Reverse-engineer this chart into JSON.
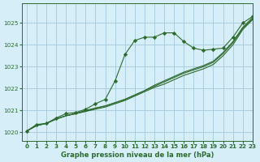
{
  "title": "Graphe pression niveau de la mer (hPa)",
  "bg_color": "#d6eef8",
  "grid_color": "#aaccdd",
  "line_color": "#2d6a2d",
  "marker_color": "#2d6a2d",
  "xlim": [
    -0.5,
    23
  ],
  "ylim": [
    1019.6,
    1025.9
  ],
  "yticks": [
    1020,
    1021,
    1022,
    1023,
    1024,
    1025
  ],
  "xticks": [
    0,
    1,
    2,
    3,
    4,
    5,
    6,
    7,
    8,
    9,
    10,
    11,
    12,
    13,
    14,
    15,
    16,
    17,
    18,
    19,
    20,
    21,
    22,
    23
  ],
  "series1_x": [
    0,
    1,
    2,
    3,
    4,
    5,
    6,
    7,
    8,
    9,
    10,
    11,
    12,
    13,
    14,
    15,
    16,
    17,
    18,
    19,
    20,
    21,
    22,
    23
  ],
  "series1_y": [
    1020.05,
    1020.3,
    1020.4,
    1020.6,
    1020.75,
    1020.85,
    1020.95,
    1021.05,
    1021.15,
    1021.3,
    1021.45,
    1021.65,
    1021.85,
    1022.05,
    1022.2,
    1022.4,
    1022.6,
    1022.75,
    1022.9,
    1023.1,
    1023.5,
    1024.0,
    1024.7,
    1025.15
  ],
  "series2_x": [
    0,
    1,
    2,
    3,
    4,
    5,
    6,
    7,
    8,
    9,
    10,
    11,
    12,
    13,
    14,
    15,
    16,
    17,
    18,
    19,
    20,
    21,
    22,
    23
  ],
  "series2_y": [
    1020.05,
    1020.3,
    1020.4,
    1020.6,
    1020.75,
    1020.85,
    1020.95,
    1021.1,
    1021.2,
    1021.35,
    1021.5,
    1021.7,
    1021.9,
    1022.1,
    1022.3,
    1022.5,
    1022.7,
    1022.85,
    1023.0,
    1023.2,
    1023.6,
    1024.1,
    1024.75,
    1025.2
  ],
  "series3_x": [
    0,
    1,
    2,
    3,
    4,
    5,
    6,
    7,
    8,
    9,
    10,
    11,
    12,
    13,
    14,
    15,
    16,
    17,
    18,
    19,
    20,
    21,
    22,
    23
  ],
  "series3_y": [
    1020.05,
    1020.3,
    1020.4,
    1020.6,
    1020.75,
    1020.85,
    1021.0,
    1021.1,
    1021.2,
    1021.35,
    1021.5,
    1021.7,
    1021.9,
    1022.15,
    1022.35,
    1022.55,
    1022.75,
    1022.9,
    1023.05,
    1023.25,
    1023.65,
    1024.15,
    1024.8,
    1025.25
  ],
  "series4_x": [
    0,
    1,
    2,
    3,
    4,
    5,
    6,
    7,
    8,
    9,
    10,
    11,
    12,
    13,
    14,
    15,
    16,
    17,
    18,
    19,
    20,
    21,
    22,
    23
  ],
  "series4_y": [
    1020.05,
    1020.35,
    1020.4,
    1020.65,
    1020.85,
    1020.9,
    1021.05,
    1021.3,
    1021.5,
    1022.35,
    1023.55,
    1024.2,
    1024.35,
    1024.35,
    1024.55,
    1024.55,
    1024.15,
    1023.85,
    1023.75,
    1023.8,
    1023.85,
    1024.35,
    1025.0,
    1025.3
  ]
}
